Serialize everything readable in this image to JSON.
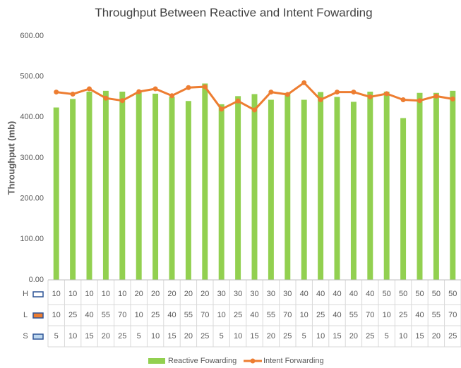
{
  "chart_data": {
    "type": "bar",
    "title": "Throughput Between Reactive and Intent Fowarding",
    "y_label": "Throughput (mb)",
    "ylim": [
      0,
      600
    ],
    "yticks": [
      {
        "value": 0,
        "label": "0.00"
      },
      {
        "value": 100,
        "label": "100.00"
      },
      {
        "value": 200,
        "label": "200.00"
      },
      {
        "value": 300,
        "label": "300.00"
      },
      {
        "value": 400,
        "label": "400.00"
      },
      {
        "value": 500,
        "label": "500.00"
      },
      {
        "value": 600,
        "label": "600.00"
      }
    ],
    "grid": false,
    "table": [
      {
        "name": "H",
        "values": [
          10,
          10,
          10,
          10,
          10,
          20,
          20,
          20,
          20,
          20,
          30,
          30,
          30,
          30,
          30,
          40,
          40,
          40,
          40,
          40,
          50,
          50,
          50,
          50,
          50
        ]
      },
      {
        "name": "L",
        "values": [
          10,
          25,
          40,
          55,
          70,
          10,
          25,
          40,
          55,
          70,
          10,
          25,
          40,
          55,
          70,
          10,
          25,
          40,
          55,
          70,
          10,
          25,
          40,
          55,
          70
        ]
      },
      {
        "name": "S",
        "values": [
          5,
          10,
          15,
          20,
          25,
          5,
          10,
          15,
          20,
          25,
          5,
          10,
          15,
          20,
          25,
          5,
          10,
          15,
          20,
          25,
          5,
          10,
          15,
          20,
          25
        ]
      }
    ],
    "series": [
      {
        "name": "Reactive Fowarding",
        "type": "bar",
        "color": "#92d050",
        "values": [
          424,
          445,
          463,
          465,
          463,
          462,
          458,
          450,
          440,
          483,
          432,
          452,
          457,
          443,
          460,
          443,
          462,
          450,
          438,
          463,
          463,
          398,
          460,
          460,
          465
        ]
      },
      {
        "name": "Intent Forwarding",
        "type": "line",
        "color": "#ed7d31",
        "values": [
          462,
          457,
          470,
          447,
          441,
          463,
          470,
          453,
          473,
          475,
          420,
          440,
          418,
          462,
          456,
          485,
          443,
          462,
          462,
          450,
          458,
          443,
          441,
          452,
          445
        ]
      }
    ],
    "legend": "bottom"
  }
}
